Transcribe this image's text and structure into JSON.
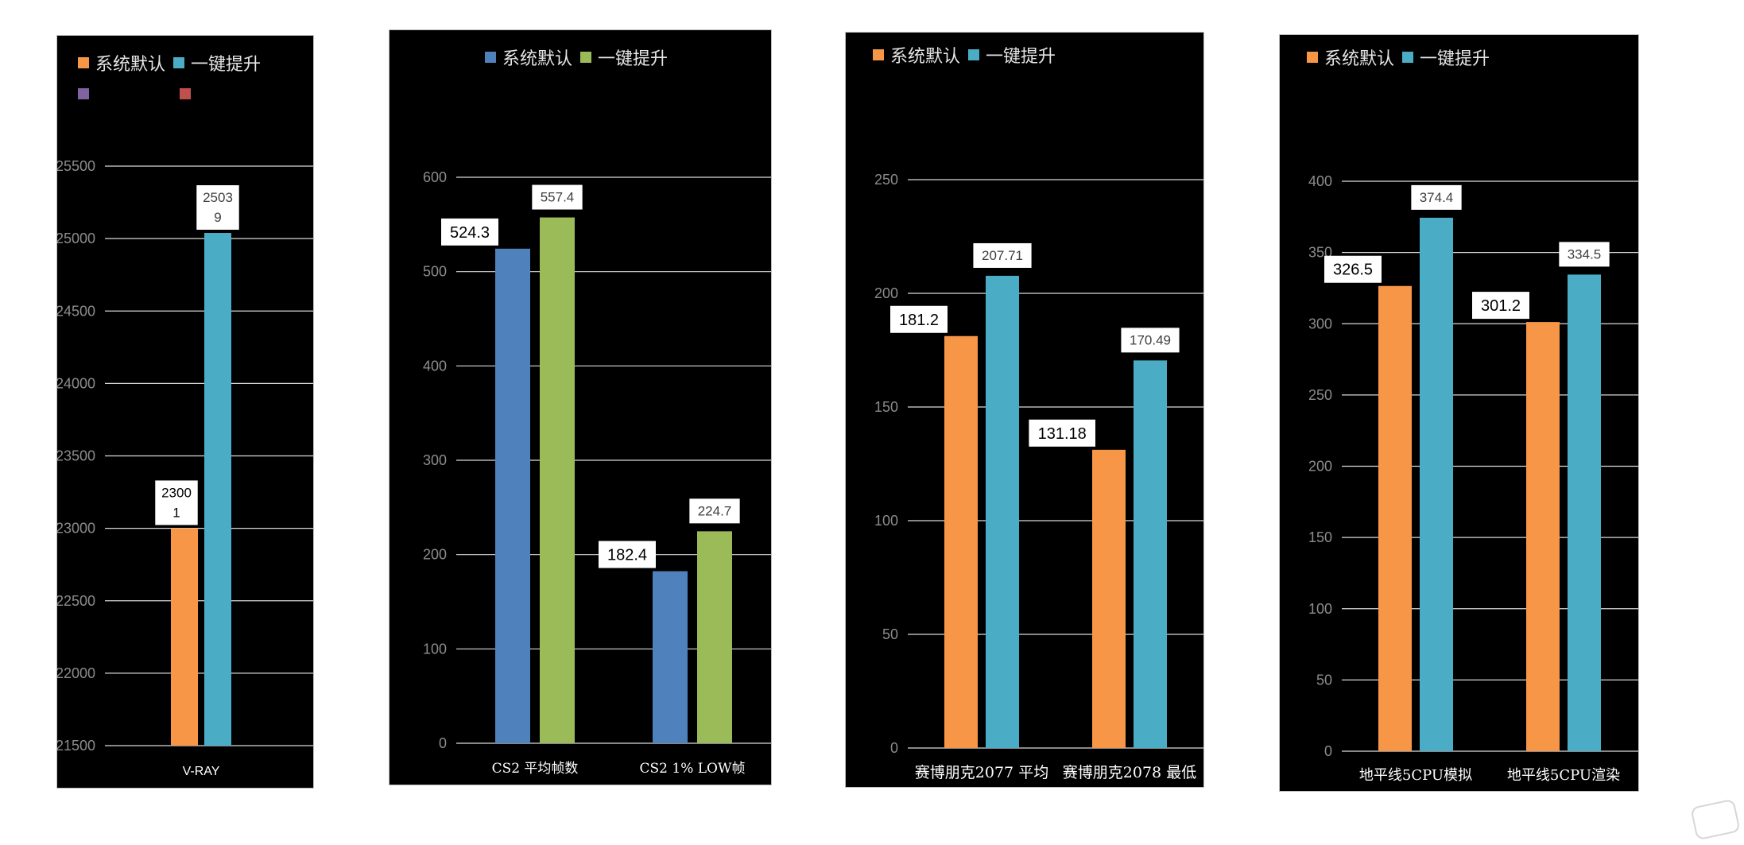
{
  "chart_data": [
    {
      "type": "bar",
      "categories": [
        "V-RAY"
      ],
      "series": [
        {
          "name": "系统默认",
          "values": [
            23001
          ],
          "color": "#f79646",
          "label_text": "2300\n1"
        },
        {
          "name": "一键提升",
          "values": [
            25039
          ],
          "color": "#4bacc6",
          "label_text": "2503\n9"
        }
      ],
      "extra_legend_colors": [
        "#8064a2",
        "#c0504d"
      ],
      "ylim": [
        21500,
        25500
      ],
      "yticks": [
        21500,
        22000,
        22500,
        23000,
        23500,
        24000,
        24500,
        25000,
        25500
      ],
      "legend_position": "top",
      "grid": true
    },
    {
      "type": "bar",
      "categories": [
        "CS2 平均帧数",
        "CS2 1% LOW帧"
      ],
      "series": [
        {
          "name": "系统默认",
          "values": [
            524.3,
            182.4
          ],
          "color": "#4f81bd"
        },
        {
          "name": "一键提升",
          "values": [
            557.4,
            224.7
          ],
          "color": "#9bbb59"
        }
      ],
      "ylim": [
        0,
        600
      ],
      "yticks": [
        0,
        100,
        200,
        300,
        400,
        500,
        600
      ],
      "legend_position": "top",
      "grid": true
    },
    {
      "type": "bar",
      "categories": [
        "赛博朋克2077 平均",
        "赛博朋克2078 最低"
      ],
      "series": [
        {
          "name": "系统默认",
          "values": [
            181.2,
            131.18
          ],
          "color": "#f79646"
        },
        {
          "name": "一键提升",
          "values": [
            207.71,
            170.49
          ],
          "color": "#4bacc6"
        }
      ],
      "ylim": [
        0,
        250
      ],
      "yticks": [
        0,
        50,
        100,
        150,
        200,
        250
      ],
      "legend_position": "top-left",
      "grid": true
    },
    {
      "type": "bar",
      "categories": [
        "地平线5CPU模拟",
        "地平线5CPU渲染"
      ],
      "series": [
        {
          "name": "系统默认",
          "values": [
            326.5,
            301.2
          ],
          "color": "#f79646"
        },
        {
          "name": "一键提升",
          "values": [
            374.4,
            334.5
          ],
          "color": "#4bacc6"
        }
      ],
      "ylim": [
        0,
        400
      ],
      "yticks": [
        0,
        50,
        100,
        150,
        200,
        250,
        300,
        350,
        400
      ],
      "legend_position": "top-left",
      "grid": true
    }
  ]
}
